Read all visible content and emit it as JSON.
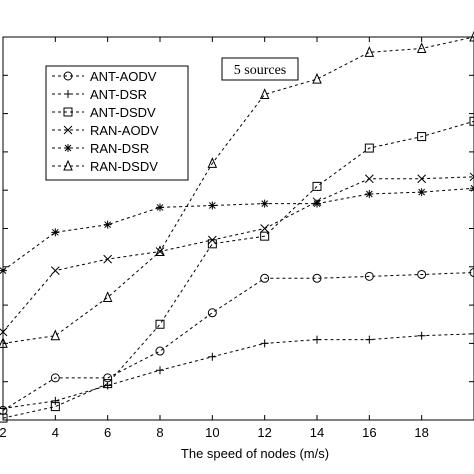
{
  "chart_data": {
    "type": "line",
    "xlabel": "The speed of nodes (m/s)",
    "ylabel": "",
    "title": "",
    "annotation": "5 sources",
    "x_ticks": [
      "2",
      "4",
      "6",
      "8",
      "10",
      "12",
      "14",
      "16",
      "18"
    ],
    "xlim": [
      2,
      20
    ],
    "ylim": [
      0,
      10
    ],
    "grid": false,
    "legend_position": "upper-left",
    "x": [
      2,
      4,
      6,
      8,
      10,
      12,
      14,
      16,
      18,
      20
    ],
    "series": [
      {
        "name": "ANT-AODV",
        "marker": "circle",
        "values": [
          0.25,
          1.1,
          1.1,
          1.8,
          2.8,
          3.7,
          3.7,
          3.75,
          3.8,
          3.85
        ]
      },
      {
        "name": "ANT-DSR",
        "marker": "plus",
        "values": [
          0.3,
          0.5,
          0.9,
          1.3,
          1.65,
          2.0,
          2.1,
          2.1,
          2.2,
          2.25
        ]
      },
      {
        "name": "ANT-DSDV",
        "marker": "square",
        "values": [
          0.05,
          0.35,
          0.95,
          2.5,
          4.6,
          4.8,
          6.1,
          7.1,
          7.4,
          7.8
        ]
      },
      {
        "name": "RAN-AODV",
        "marker": "x",
        "values": [
          2.3,
          3.9,
          4.2,
          4.4,
          4.7,
          5.0,
          5.7,
          6.3,
          6.3,
          6.35
        ]
      },
      {
        "name": "RAN-DSR",
        "marker": "asterisk",
        "values": [
          3.9,
          4.9,
          5.1,
          5.55,
          5.6,
          5.65,
          5.65,
          5.9,
          5.95,
          6.05
        ]
      },
      {
        "name": "RAN-DSDV",
        "marker": "triangle",
        "values": [
          2.0,
          2.2,
          3.2,
          4.4,
          6.7,
          8.5,
          8.9,
          9.6,
          9.7,
          10.0
        ]
      }
    ]
  }
}
